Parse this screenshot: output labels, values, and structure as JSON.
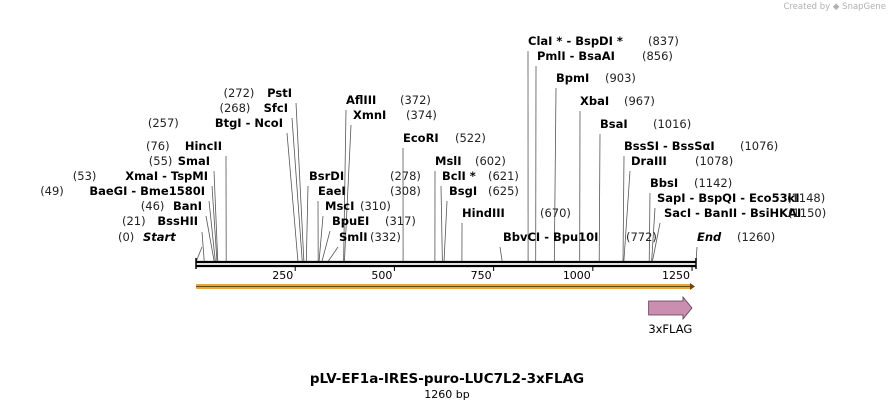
{
  "credit": {
    "prefix": "Created by",
    "brand": "SnapGene"
  },
  "map": {
    "title": "pLV-EF1a-IRES-puro-LUC7L2-3xFLAG",
    "length_text": "1260 bp",
    "length_bp": 1260,
    "ticks": [
      250,
      500,
      750,
      1000,
      1250
    ],
    "orf_color": "#e8a53a",
    "feature_color": "#c98eb0"
  },
  "sites": [
    {
      "pos": "(0)",
      "names": [
        "Start"
      ],
      "italic": true,
      "bp": 0
    },
    {
      "pos": "(21)",
      "names": [
        "BssHII"
      ],
      "bp": 21
    },
    {
      "pos": "(46)",
      "names": [
        "BanI"
      ],
      "bp": 46
    },
    {
      "pos": "(49)",
      "names": [
        "BaeGI",
        "Bme1580I"
      ],
      "bp": 49
    },
    {
      "pos": "(53)",
      "names": [
        "XmaI",
        "TspMI"
      ],
      "bp": 53
    },
    {
      "pos": "(55)",
      "names": [
        "SmaI"
      ],
      "bp": 55
    },
    {
      "pos": "(76)",
      "names": [
        "HincII"
      ],
      "bp": 76
    },
    {
      "pos": "(257)",
      "names": [
        "BtgI",
        "NcoI"
      ],
      "bp": 257
    },
    {
      "pos": "(268)",
      "names": [
        "SfcI"
      ],
      "bp": 268
    },
    {
      "pos": "(272)",
      "names": [
        "PstI"
      ],
      "bp": 272
    },
    {
      "pos": "(278)",
      "names": [
        "BsrDI"
      ],
      "bp": 278
    },
    {
      "pos": "(308)",
      "names": [
        "EaeI"
      ],
      "bp": 308
    },
    {
      "pos": "(310)",
      "names": [
        "MscI"
      ],
      "bp": 310
    },
    {
      "pos": "(317)",
      "names": [
        "BpuEI"
      ],
      "bp": 317
    },
    {
      "pos": "(332)",
      "names": [
        "SmlI"
      ],
      "bp": 332
    },
    {
      "pos": "(372)",
      "names": [
        "AflIII"
      ],
      "bp": 372
    },
    {
      "pos": "(374)",
      "names": [
        "XmnI"
      ],
      "bp": 374
    },
    {
      "pos": "(522)",
      "names": [
        "EcoRI"
      ],
      "bp": 522
    },
    {
      "pos": "(602)",
      "names": [
        "MslI"
      ],
      "bp": 602
    },
    {
      "pos": "(621)",
      "names": [
        "BclI *"
      ],
      "bp": 621
    },
    {
      "pos": "(625)",
      "names": [
        "BsgI"
      ],
      "bp": 625
    },
    {
      "pos": "(670)",
      "names": [
        "HindIII"
      ],
      "bp": 670
    },
    {
      "pos": "(772)",
      "names": [
        "BbvCI",
        "Bpu10I"
      ],
      "bp": 772
    },
    {
      "pos": "(837)",
      "names": [
        "ClaI *",
        "BspDI *"
      ],
      "bp": 837
    },
    {
      "pos": "(856)",
      "names": [
        "PmlI",
        "BsaAI"
      ],
      "bp": 856
    },
    {
      "pos": "(903)",
      "names": [
        "BpmI"
      ],
      "bp": 903
    },
    {
      "pos": "(967)",
      "names": [
        "XbaI"
      ],
      "bp": 967
    },
    {
      "pos": "(1016)",
      "names": [
        "BsaI"
      ],
      "bp": 1016
    },
    {
      "pos": "(1076)",
      "names": [
        "BssSI",
        "BssSαI"
      ],
      "bp": 1076
    },
    {
      "pos": "(1078)",
      "names": [
        "DraIII"
      ],
      "bp": 1078
    },
    {
      "pos": "(1142)",
      "names": [
        "BbsI"
      ],
      "bp": 1142
    },
    {
      "pos": "(1148)",
      "names": [
        "SapI",
        "BspQI",
        "Eco53kI"
      ],
      "bp": 1148
    },
    {
      "pos": "(1150)",
      "names": [
        "SacI",
        "BanII",
        "BsiHKAI"
      ],
      "bp": 1150
    },
    {
      "pos": "(1260)",
      "names": [
        "End"
      ],
      "italic": true,
      "bp": 1260
    }
  ],
  "features": [
    {
      "name": "3xFLAG",
      "start": 1186,
      "end": 1260
    }
  ]
}
